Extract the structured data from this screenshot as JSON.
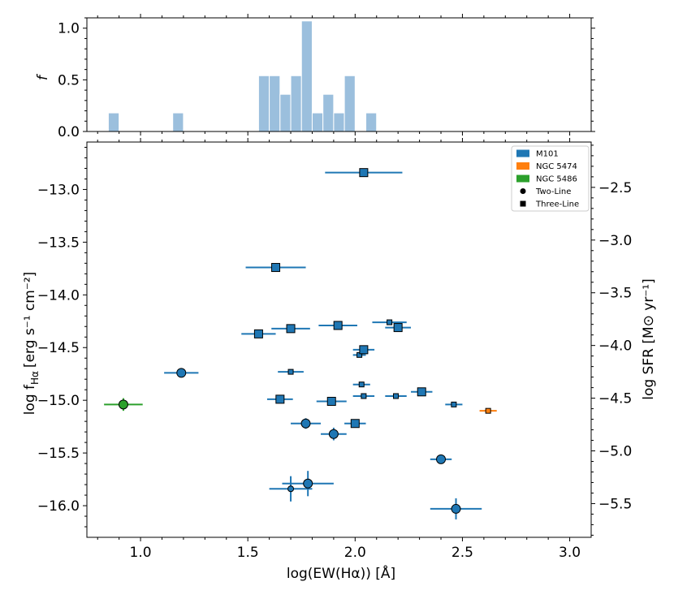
{
  "chart_data": [
    {
      "type": "bar",
      "panel": "histogram",
      "ylabel": "f",
      "xlim": [
        0.75,
        3.1
      ],
      "ylim": [
        0,
        1.1
      ],
      "yticks": [
        0.0,
        0.5,
        1.0
      ],
      "ytick_labels": [
        "0.0",
        "0.5",
        "1.0"
      ],
      "bar_color": "#9bbfdd",
      "bin_width": 0.05,
      "bins": [
        {
          "left": 0.85,
          "value": 0.18
        },
        {
          "left": 1.15,
          "value": 0.18
        },
        {
          "left": 1.55,
          "value": 0.54
        },
        {
          "left": 1.6,
          "value": 0.54
        },
        {
          "left": 1.65,
          "value": 0.36
        },
        {
          "left": 1.7,
          "value": 0.54
        },
        {
          "left": 1.75,
          "value": 1.07
        },
        {
          "left": 1.8,
          "value": 0.18
        },
        {
          "left": 1.85,
          "value": 0.36
        },
        {
          "left": 1.9,
          "value": 0.18
        },
        {
          "left": 1.95,
          "value": 0.54
        },
        {
          "left": 2.05,
          "value": 0.18
        }
      ]
    },
    {
      "type": "scatter",
      "panel": "main",
      "xlabel": "log(EW(Hα)) [Å]",
      "ylabel_prefix": "log f",
      "ylabel_sub": "Hα",
      "ylabel_units": "[erg s⁻¹ cm⁻²]",
      "y2label": "log SFR [M⊙ yr⁻¹]",
      "xlim": [
        0.75,
        3.1
      ],
      "ylim": [
        -16.3,
        -12.55
      ],
      "xticks": [
        1.0,
        1.5,
        2.0,
        2.5,
        3.0
      ],
      "xtick_labels": [
        "1.0",
        "1.5",
        "2.0",
        "2.5",
        "3.0"
      ],
      "yticks": [
        -16.0,
        -15.5,
        -15.0,
        -14.5,
        -14.0,
        -13.5,
        -13.0
      ],
      "ytick_labels": [
        "−16.0",
        "−15.5",
        "−15.0",
        "−14.5",
        "−14.0",
        "−13.5",
        "−13.0"
      ],
      "y2_offset": 10.48,
      "y2ticks": [
        -5.5,
        -5.0,
        -4.5,
        -4.0,
        -3.5,
        -3.0,
        -2.5
      ],
      "y2tick_labels": [
        "−5.5",
        "−5.0",
        "−4.5",
        "−4.0",
        "−3.5",
        "−3.0",
        "−2.5"
      ],
      "colors": {
        "M101": "#1f77b4",
        "NGC 5474": "#ff7f0e",
        "NGC 5486": "#2ca02c"
      },
      "legend": {
        "location": "top-right",
        "entries": [
          {
            "label": "M101",
            "kind": "patch",
            "color": "#1f77b4"
          },
          {
            "label": "NGC 5474",
            "kind": "patch",
            "color": "#ff7f0e"
          },
          {
            "label": "NGC 5486",
            "kind": "patch",
            "color": "#2ca02c"
          },
          {
            "label": "Two-Line",
            "kind": "circle",
            "color": "#000000"
          },
          {
            "label": "Three-Line",
            "kind": "square",
            "color": "#000000"
          }
        ]
      },
      "points": [
        {
          "x": 2.04,
          "y": -12.84,
          "xerr": 0.18,
          "yerr": 0.03,
          "marker": "square",
          "size": "large",
          "galaxy": "M101"
        },
        {
          "x": 1.63,
          "y": -13.74,
          "xerr": 0.14,
          "yerr": 0.03,
          "marker": "square",
          "size": "large",
          "galaxy": "M101"
        },
        {
          "x": 1.55,
          "y": -14.37,
          "xerr": 0.08,
          "yerr": 0.03,
          "marker": "square",
          "size": "large",
          "galaxy": "M101"
        },
        {
          "x": 1.7,
          "y": -14.32,
          "xerr": 0.09,
          "yerr": 0.03,
          "marker": "square",
          "size": "large",
          "galaxy": "M101"
        },
        {
          "x": 1.92,
          "y": -14.29,
          "xerr": 0.09,
          "yerr": 0.03,
          "marker": "square",
          "size": "large",
          "galaxy": "M101"
        },
        {
          "x": 2.16,
          "y": -14.26,
          "xerr": 0.08,
          "yerr": 0.02,
          "marker": "square",
          "size": "small",
          "galaxy": "M101"
        },
        {
          "x": 2.2,
          "y": -14.31,
          "xerr": 0.06,
          "yerr": 0.03,
          "marker": "square",
          "size": "large",
          "galaxy": "M101"
        },
        {
          "x": 2.02,
          "y": -14.57,
          "xerr": 0.03,
          "yerr": 0.02,
          "marker": "square",
          "size": "small",
          "galaxy": "M101"
        },
        {
          "x": 2.04,
          "y": -14.52,
          "xerr": 0.05,
          "yerr": 0.03,
          "marker": "square",
          "size": "large",
          "galaxy": "M101"
        },
        {
          "x": 1.7,
          "y": -14.73,
          "xerr": 0.06,
          "yerr": 0.02,
          "marker": "square",
          "size": "small",
          "galaxy": "M101"
        },
        {
          "x": 2.03,
          "y": -14.85,
          "xerr": 0.04,
          "yerr": 0.02,
          "marker": "square",
          "size": "small",
          "galaxy": "M101"
        },
        {
          "x": 2.04,
          "y": -14.96,
          "xerr": 0.05,
          "yerr": 0.02,
          "marker": "square",
          "size": "small",
          "galaxy": "M101"
        },
        {
          "x": 2.19,
          "y": -14.96,
          "xerr": 0.05,
          "yerr": 0.02,
          "marker": "square",
          "size": "small",
          "galaxy": "M101"
        },
        {
          "x": 2.31,
          "y": -14.92,
          "xerr": 0.05,
          "yerr": 0.03,
          "marker": "square",
          "size": "large",
          "galaxy": "M101"
        },
        {
          "x": 1.65,
          "y": -14.99,
          "xerr": 0.06,
          "yerr": 0.03,
          "marker": "square",
          "size": "large",
          "galaxy": "M101"
        },
        {
          "x": 1.89,
          "y": -15.01,
          "xerr": 0.07,
          "yerr": 0.03,
          "marker": "square",
          "size": "large",
          "galaxy": "M101"
        },
        {
          "x": 2.46,
          "y": -15.04,
          "xerr": 0.04,
          "yerr": 0.02,
          "marker": "square",
          "size": "small",
          "galaxy": "M101"
        },
        {
          "x": 2.62,
          "y": -15.1,
          "xerr": 0.04,
          "yerr": 0.02,
          "marker": "square",
          "size": "small",
          "galaxy": "NGC 5474"
        },
        {
          "x": 2.0,
          "y": -15.22,
          "xerr": 0.05,
          "yerr": 0.03,
          "marker": "square",
          "size": "large",
          "galaxy": "M101"
        },
        {
          "x": 1.19,
          "y": -14.74,
          "xerr": 0.08,
          "yerr": 0.03,
          "marker": "circle",
          "size": "large",
          "galaxy": "M101"
        },
        {
          "x": 0.92,
          "y": -15.04,
          "xerr": 0.09,
          "yerr": 0.06,
          "marker": "circle",
          "size": "large",
          "galaxy": "NGC 5486"
        },
        {
          "x": 1.77,
          "y": -15.22,
          "xerr": 0.07,
          "yerr": 0.05,
          "marker": "circle",
          "size": "large",
          "galaxy": "M101"
        },
        {
          "x": 1.9,
          "y": -15.32,
          "xerr": 0.06,
          "yerr": 0.06,
          "marker": "circle",
          "size": "large",
          "galaxy": "M101"
        },
        {
          "x": 2.4,
          "y": -15.56,
          "xerr": 0.05,
          "yerr": 0.04,
          "marker": "circle",
          "size": "large",
          "galaxy": "M101"
        },
        {
          "x": 1.7,
          "y": -15.84,
          "xerr": 0.1,
          "yerr": 0.12,
          "marker": "circle",
          "size": "small",
          "galaxy": "M101"
        },
        {
          "x": 1.78,
          "y": -15.79,
          "xerr": 0.12,
          "yerr": 0.12,
          "marker": "circle",
          "size": "large",
          "galaxy": "M101"
        },
        {
          "x": 2.47,
          "y": -16.03,
          "xerr": 0.12,
          "yerr": 0.1,
          "marker": "circle",
          "size": "large",
          "galaxy": "M101"
        }
      ]
    }
  ]
}
